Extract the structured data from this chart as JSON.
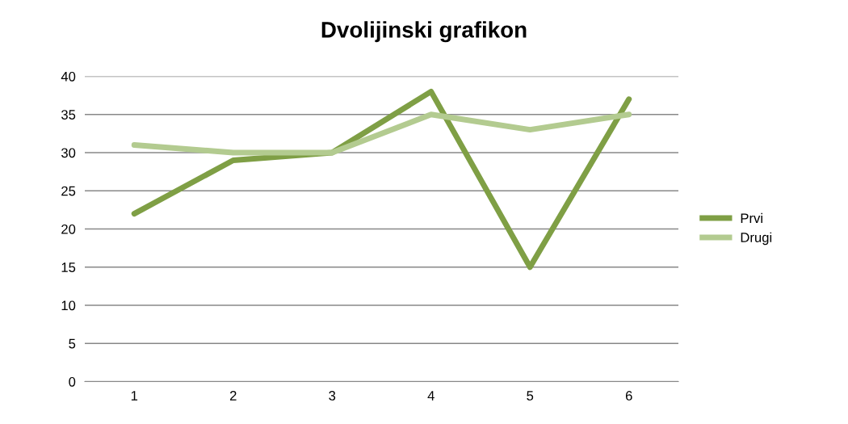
{
  "chart_data": {
    "type": "line",
    "title": "Dvolijinski grafikon",
    "categories": [
      "1",
      "2",
      "3",
      "4",
      "5",
      "6"
    ],
    "series": [
      {
        "name": "Prvi",
        "color": "#7f9f45",
        "values": [
          22,
          29,
          30,
          38,
          15,
          37
        ]
      },
      {
        "name": "Drugi",
        "color": "#b3cb90",
        "values": [
          31,
          30,
          30,
          35,
          33,
          35
        ]
      }
    ],
    "ylim": [
      0,
      40
    ],
    "yticks": [
      0,
      5,
      10,
      15,
      20,
      25,
      30,
      35,
      40
    ],
    "grid": "y",
    "legend": "right",
    "marker": "none",
    "line_style": "solid"
  }
}
